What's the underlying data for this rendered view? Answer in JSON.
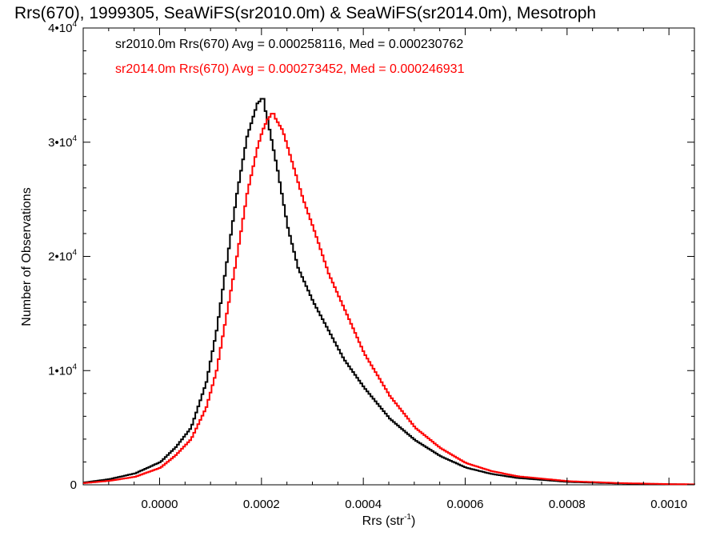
{
  "chart_data": {
    "type": "line",
    "title": "Rrs(670), 1999305, SeaWiFS(sr2010.0m) & SeaWiFS(sr2014.0m), Mesotroph",
    "xlabel": "Rrs (str",
    "xlabel_sup": "-1",
    "xlabel_close": ")",
    "ylabel": "Number of Observations",
    "xlim": [
      -0.00015,
      0.00105
    ],
    "ylim": [
      0,
      40000
    ],
    "x_ticks": [
      {
        "value": 0.0,
        "label": "0.0000"
      },
      {
        "value": 0.0002,
        "label": "0.0002"
      },
      {
        "value": 0.0004,
        "label": "0.0004"
      },
      {
        "value": 0.0006,
        "label": "0.0006"
      },
      {
        "value": 0.0008,
        "label": "0.0008"
      },
      {
        "value": 0.001,
        "label": "0.0010"
      }
    ],
    "y_ticks": [
      {
        "value": 0,
        "mant": "0",
        "exp": ""
      },
      {
        "value": 10000,
        "mant": "1•10",
        "exp": "4"
      },
      {
        "value": 20000,
        "mant": "2•10",
        "exp": "4"
      },
      {
        "value": 30000,
        "mant": "3•10",
        "exp": "4"
      },
      {
        "value": 40000,
        "mant": "4•10",
        "exp": "4"
      }
    ],
    "annotations": [
      {
        "text": "sr2010.0m Rrs(670) Avg = 0.000258116, Med = 0.000230762",
        "color": "#000000"
      },
      {
        "text": "sr2014.0m Rrs(670) Avg = 0.000273452, Med = 0.000246931",
        "color": "#ff0000"
      }
    ],
    "series": [
      {
        "color": "#000000",
        "peak_x": 0.0002,
        "peak_y": 33800,
        "x": [
          -0.00015,
          -0.0001,
          -5e-05,
          0.0,
          3e-05,
          6e-05,
          9e-05,
          0.00011,
          0.00013,
          0.00015,
          0.00017,
          0.00019,
          0.0002,
          0.00021,
          0.00023,
          0.00025,
          0.00027,
          0.0003,
          0.00033,
          0.00036,
          0.0004,
          0.00045,
          0.0005,
          0.00055,
          0.0006,
          0.00065,
          0.0007,
          0.0008,
          0.0009,
          0.001,
          0.00105
        ],
        "y": [
          200,
          500,
          1000,
          2000,
          3300,
          5000,
          9000,
          13500,
          19500,
          25500,
          30500,
          33400,
          33800,
          32000,
          27500,
          22500,
          19000,
          16000,
          13500,
          11000,
          8500,
          5800,
          3900,
          2500,
          1500,
          950,
          600,
          250,
          120,
          50,
          30
        ]
      },
      {
        "color": "#ff0000",
        "peak_x": 0.00022,
        "peak_y": 32500,
        "x": [
          -0.00015,
          -0.0001,
          -5e-05,
          0.0,
          3e-05,
          6e-05,
          9e-05,
          0.00011,
          0.00013,
          0.00015,
          0.00017,
          0.00019,
          0.0002,
          0.00021,
          0.00022,
          0.00024,
          0.00026,
          0.00028,
          0.0003,
          0.00033,
          0.00036,
          0.0004,
          0.00045,
          0.0005,
          0.00055,
          0.0006,
          0.00065,
          0.0007,
          0.0008,
          0.0009,
          0.001,
          0.00105
        ],
        "y": [
          150,
          350,
          700,
          1500,
          2600,
          4000,
          6800,
          10000,
          15000,
          20000,
          25500,
          29500,
          31000,
          32000,
          32500,
          31000,
          28000,
          25000,
          22500,
          18500,
          15500,
          11500,
          7800,
          5000,
          3200,
          1900,
          1200,
          750,
          320,
          150,
          60,
          40
        ]
      }
    ]
  }
}
